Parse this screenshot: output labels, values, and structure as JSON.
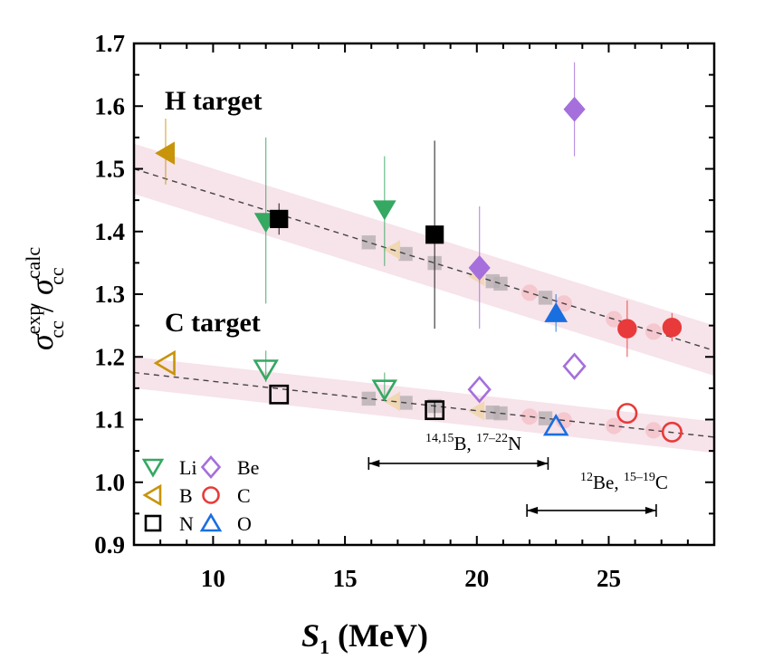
{
  "chart_data": {
    "type": "scatter",
    "xlabel": {
      "main": "S",
      "sub": "1",
      "unit": " (MeV)"
    },
    "ylabel": {
      "num": "σ",
      "num_sup": "exp",
      "num_sub": "cc",
      "sep": " / ",
      "den": "σ",
      "den_sup": "calc",
      "den_sub": "cc"
    },
    "xlim": [
      7,
      29
    ],
    "ylim": [
      0.9,
      1.7
    ],
    "xticks": [
      10,
      15,
      20,
      25
    ],
    "yticks": [
      "0.9",
      "1.0",
      "1.1",
      "1.2",
      "1.3",
      "1.4",
      "1.5",
      "1.6",
      "1.7"
    ],
    "grid": false,
    "annotations": {
      "h_target": "H target",
      "c_target": "C target",
      "range1": {
        "sup1": "14,15",
        "t1": "B, ",
        "sup2": "17–22",
        "t2": "N",
        "x": [
          15.9,
          22.7
        ],
        "y": 1.03
      },
      "range2": {
        "sup1": "12",
        "t1": "Be, ",
        "sup2": "15–19",
        "t2": "C",
        "x": [
          21.9,
          26.8
        ],
        "y": 0.955
      }
    },
    "legend": {
      "placement": "bottom-left",
      "entries": [
        {
          "label": "Li",
          "marker": "triangle-down",
          "color": "#35a862"
        },
        {
          "label": "Be",
          "marker": "diamond",
          "color": "#a56fdc"
        },
        {
          "label": "B",
          "marker": "triangle-left",
          "color": "#c8940a"
        },
        {
          "label": "C",
          "marker": "circle",
          "color": "#e83a3a"
        },
        {
          "label": "N",
          "marker": "square",
          "color": "#000000"
        },
        {
          "label": "O",
          "marker": "triangle-up",
          "color": "#1a6fe0"
        }
      ]
    },
    "fits": [
      {
        "target": "H",
        "x": [
          7,
          29
        ],
        "y": [
          1.5,
          1.21
        ],
        "band": 0.04,
        "band_color": "#f7e3ea"
      },
      {
        "target": "C",
        "x": [
          7,
          29
        ],
        "y": [
          1.175,
          1.072
        ],
        "band": 0.025,
        "band_color": "#f7e3ea"
      }
    ],
    "predictions": {
      "squares_x": [
        15.9,
        17.3,
        18.4,
        20.6,
        20.9,
        22.6
      ],
      "triangles_x": [
        16.8,
        20.0
      ],
      "circles_x": [
        22.0,
        23.3,
        25.2,
        26.7
      ]
    },
    "series": [
      {
        "target": "H",
        "filled": true,
        "points": [
          {
            "el": "B",
            "x": 8.2,
            "y": 1.525,
            "lo": 1.475,
            "hi": 1.58
          },
          {
            "el": "Li",
            "x": 12.0,
            "y": 1.415,
            "lo": 1.285,
            "hi": 1.55
          },
          {
            "el": "N",
            "x": 12.5,
            "y": 1.42,
            "lo": 1.395,
            "hi": 1.445
          },
          {
            "el": "Li",
            "x": 16.5,
            "y": 1.435,
            "lo": 1.345,
            "hi": 1.52
          },
          {
            "el": "N",
            "x": 18.4,
            "y": 1.395,
            "lo": 1.245,
            "hi": 1.545
          },
          {
            "el": "Be",
            "x": 20.1,
            "y": 1.342,
            "lo": 1.245,
            "hi": 1.44
          },
          {
            "el": "O",
            "x": 23.0,
            "y": 1.27,
            "lo": 1.24,
            "hi": 1.3
          },
          {
            "el": "Be",
            "x": 23.7,
            "y": 1.595,
            "lo": 1.52,
            "hi": 1.67
          },
          {
            "el": "C",
            "x": 25.7,
            "y": 1.245,
            "lo": 1.2,
            "hi": 1.29
          },
          {
            "el": "C",
            "x": 27.4,
            "y": 1.247,
            "lo": 1.225,
            "hi": 1.27
          }
        ]
      },
      {
        "target": "C",
        "filled": false,
        "points": [
          {
            "el": "B",
            "x": 8.2,
            "y": 1.19
          },
          {
            "el": "Li",
            "x": 12.0,
            "y": 1.18,
            "lo": 1.16,
            "hi": 1.21
          },
          {
            "el": "N",
            "x": 12.5,
            "y": 1.14
          },
          {
            "el": "Li",
            "x": 16.5,
            "y": 1.148,
            "lo": 1.13,
            "hi": 1.175
          },
          {
            "el": "N",
            "x": 18.4,
            "y": 1.115,
            "lo": 1.1,
            "hi": 1.13
          },
          {
            "el": "Be",
            "x": 20.1,
            "y": 1.148
          },
          {
            "el": "O",
            "x": 23.0,
            "y": 1.09
          },
          {
            "el": "Be",
            "x": 23.7,
            "y": 1.185
          },
          {
            "el": "C",
            "x": 25.7,
            "y": 1.11
          },
          {
            "el": "C",
            "x": 27.4,
            "y": 1.08
          }
        ]
      }
    ]
  }
}
